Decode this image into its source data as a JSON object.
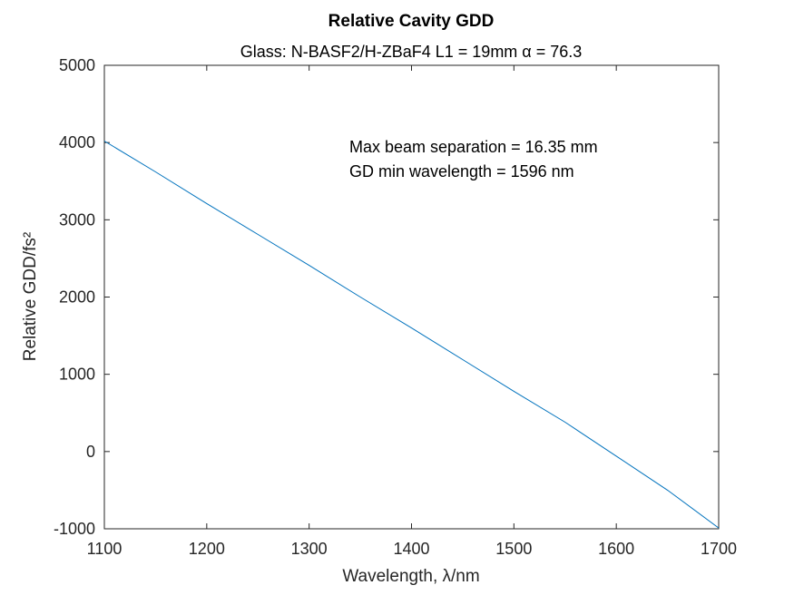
{
  "chart_data": {
    "type": "line",
    "title": "Relative Cavity GDD",
    "subtitle": "Glass: N-BASF2/H-ZBaF4  L1 = 19mm  α = 76.3",
    "xlabel": "Wavelength, λ/nm",
    "ylabel": "Relative GDD/fs²",
    "xlim": [
      1100,
      1700
    ],
    "ylim": [
      -1000,
      5000
    ],
    "xticks": [
      1100,
      1200,
      1300,
      1400,
      1500,
      1600,
      1700
    ],
    "xtick_labels": [
      "1100",
      "1200",
      "1300",
      "1400",
      "1500",
      "1600",
      "1700"
    ],
    "yticks": [
      -1000,
      0,
      1000,
      2000,
      3000,
      4000,
      5000
    ],
    "ytick_labels": [
      "-1000",
      "0",
      "1000",
      "2000",
      "3000",
      "4000",
      "5000"
    ],
    "grid": false,
    "series": [
      {
        "color": "#0072BD",
        "x": [
          1100,
          1150,
          1200,
          1250,
          1300,
          1350,
          1400,
          1450,
          1500,
          1550,
          1600,
          1650,
          1700
        ],
        "y": [
          4020,
          3620,
          3210,
          2810,
          2410,
          2000,
          1600,
          1190,
          780,
          380,
          -60,
          -500,
          -990
        ]
      }
    ],
    "annotations": [
      "Max beam separation = 16.35 mm",
      "GD min wavelength = 1596 nm"
    ]
  }
}
